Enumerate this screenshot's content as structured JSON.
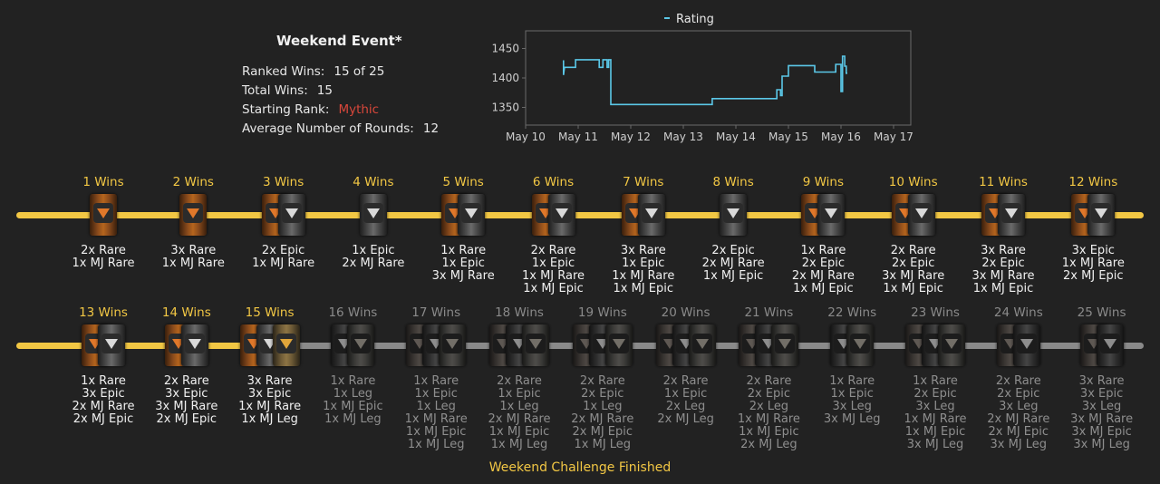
{
  "event": {
    "title": "Weekend Event*",
    "ranked_wins_label": "Ranked Wins:",
    "ranked_wins_value": "15 of 25",
    "total_wins_label": "Total Wins:",
    "total_wins_value": "15",
    "starting_rank_label": "Starting Rank:",
    "starting_rank_value": "Mythic",
    "avg_rounds_label": "Average Number of Rounds:",
    "avg_rounds_value": "12"
  },
  "chart_data": {
    "type": "line",
    "legend": "Rating",
    "legend_position": "top",
    "x_ticks": [
      "May 10",
      "May 11",
      "May 12",
      "May 13",
      "May 14",
      "May 15",
      "May 16",
      "May 17"
    ],
    "y_ticks": [
      1350,
      1400,
      1450
    ],
    "ylim": [
      1320,
      1480
    ],
    "xlim": [
      0,
      7
    ],
    "grid": false,
    "series": [
      {
        "name": "Rating",
        "color": "#5bc8e8",
        "points": [
          [
            0.72,
            1430
          ],
          [
            0.72,
            1405
          ],
          [
            0.74,
            1418
          ],
          [
            0.95,
            1418
          ],
          [
            0.95,
            1431
          ],
          [
            1.4,
            1431
          ],
          [
            1.4,
            1418
          ],
          [
            1.47,
            1418
          ],
          [
            1.47,
            1431
          ],
          [
            1.55,
            1431
          ],
          [
            1.55,
            1418
          ],
          [
            1.58,
            1418
          ],
          [
            1.58,
            1431
          ],
          [
            1.62,
            1431
          ],
          [
            1.62,
            1355
          ],
          [
            3.55,
            1355
          ],
          [
            3.55,
            1365
          ],
          [
            4.78,
            1365
          ],
          [
            4.78,
            1380
          ],
          [
            4.85,
            1380
          ],
          [
            4.85,
            1370
          ],
          [
            4.88,
            1370
          ],
          [
            4.88,
            1403
          ],
          [
            5.0,
            1403
          ],
          [
            5.0,
            1421
          ],
          [
            5.5,
            1421
          ],
          [
            5.5,
            1410
          ],
          [
            5.9,
            1410
          ],
          [
            5.9,
            1423
          ],
          [
            6.0,
            1423
          ],
          [
            6.0,
            1377
          ],
          [
            6.03,
            1377
          ],
          [
            6.03,
            1437
          ],
          [
            6.07,
            1437
          ],
          [
            6.07,
            1420
          ],
          [
            6.1,
            1420
          ],
          [
            6.1,
            1408
          ],
          [
            6.12,
            1408
          ]
        ]
      }
    ]
  },
  "rows": [
    {
      "tiers": [
        {
          "label": "1 Wins",
          "done": true,
          "chests": [
            "rare"
          ],
          "rewards": [
            "2x Rare",
            "1x MJ Rare"
          ]
        },
        {
          "label": "2 Wins",
          "done": true,
          "chests": [
            "rare"
          ],
          "rewards": [
            "3x Rare",
            "1x MJ Rare"
          ]
        },
        {
          "label": "3 Wins",
          "done": true,
          "chests": [
            "rare",
            "epic"
          ],
          "rewards": [
            "2x Epic",
            "1x MJ Rare"
          ]
        },
        {
          "label": "4 Wins",
          "done": true,
          "chests": [
            "epic"
          ],
          "rewards": [
            "1x Epic",
            "2x MJ Rare"
          ]
        },
        {
          "label": "5 Wins",
          "done": true,
          "chests": [
            "rare",
            "epic"
          ],
          "rewards": [
            "1x Rare",
            "1x Epic",
            "3x MJ Rare"
          ]
        },
        {
          "label": "6 Wins",
          "done": true,
          "chests": [
            "rare",
            "epic"
          ],
          "rewards": [
            "2x Rare",
            "1x Epic",
            "1x MJ Rare",
            "1x MJ Epic"
          ]
        },
        {
          "label": "7 Wins",
          "done": true,
          "chests": [
            "rare",
            "epic"
          ],
          "rewards": [
            "3x Rare",
            "1x Epic",
            "1x MJ Rare",
            "1x MJ Epic"
          ]
        },
        {
          "label": "8 Wins",
          "done": true,
          "chests": [
            "epic"
          ],
          "rewards": [
            "2x Epic",
            "2x MJ Rare",
            "1x MJ Epic"
          ]
        },
        {
          "label": "9 Wins",
          "done": true,
          "chests": [
            "rare",
            "epic"
          ],
          "rewards": [
            "1x Rare",
            "2x Epic",
            "2x MJ Rare",
            "1x MJ Epic"
          ]
        },
        {
          "label": "10 Wins",
          "done": true,
          "chests": [
            "rare",
            "epic"
          ],
          "rewards": [
            "2x Rare",
            "2x Epic",
            "3x MJ Rare",
            "1x MJ Epic"
          ]
        },
        {
          "label": "11 Wins",
          "done": true,
          "chests": [
            "rare",
            "epic"
          ],
          "rewards": [
            "3x Rare",
            "2x Epic",
            "3x MJ Rare",
            "1x MJ Epic"
          ]
        },
        {
          "label": "12 Wins",
          "done": true,
          "chests": [
            "rare",
            "epic"
          ],
          "rewards": [
            "3x Epic",
            "1x MJ Rare",
            "2x MJ Epic"
          ]
        }
      ]
    },
    {
      "tiers": [
        {
          "label": "13 Wins",
          "done": true,
          "chests": [
            "rare",
            "epic"
          ],
          "rewards": [
            "1x Rare",
            "3x Epic",
            "2x MJ Rare",
            "2x MJ Epic"
          ]
        },
        {
          "label": "14 Wins",
          "done": true,
          "chests": [
            "rare",
            "epic"
          ],
          "rewards": [
            "2x Rare",
            "3x Epic",
            "3x MJ Rare",
            "2x MJ Epic"
          ]
        },
        {
          "label": "15 Wins",
          "done": true,
          "chests": [
            "rare",
            "epic",
            "leg"
          ],
          "rewards": [
            "3x Rare",
            "3x Epic",
            "1x MJ Rare",
            "1x MJ Leg"
          ]
        },
        {
          "label": "16 Wins",
          "done": false,
          "chests": [
            "epic",
            "leg"
          ],
          "rewards": [
            "1x Rare",
            "1x Leg",
            "1x MJ Epic",
            "1x MJ Leg"
          ]
        },
        {
          "label": "17 Wins",
          "done": false,
          "chests": [
            "rare",
            "epic",
            "leg"
          ],
          "rewards": [
            "1x Rare",
            "1x Epic",
            "1x Leg",
            "1x MJ Rare",
            "1x MJ Epic",
            "1x MJ Leg"
          ]
        },
        {
          "label": "18 Wins",
          "done": false,
          "chests": [
            "rare",
            "epic",
            "leg"
          ],
          "rewards": [
            "2x Rare",
            "1x Epic",
            "1x Leg",
            "2x MJ Rare",
            "1x MJ Epic",
            "1x MJ Leg"
          ]
        },
        {
          "label": "19 Wins",
          "done": false,
          "chests": [
            "rare",
            "epic",
            "leg"
          ],
          "rewards": [
            "2x Rare",
            "2x Epic",
            "1x Leg",
            "2x MJ Rare",
            "2x MJ Epic",
            "1x MJ Leg"
          ]
        },
        {
          "label": "20 Wins",
          "done": false,
          "chests": [
            "rare",
            "epic",
            "leg"
          ],
          "rewards": [
            "2x Rare",
            "1x Epic",
            "2x Leg",
            "2x MJ Leg"
          ]
        },
        {
          "label": "21 Wins",
          "done": false,
          "chests": [
            "rare",
            "epic",
            "leg"
          ],
          "rewards": [
            "2x Rare",
            "2x Epic",
            "2x Leg",
            "1x MJ Rare",
            "1x MJ Epic",
            "2x MJ Leg"
          ]
        },
        {
          "label": "22 Wins",
          "done": false,
          "chests": [
            "epic",
            "leg"
          ],
          "rewards": [
            "1x Rare",
            "1x Epic",
            "3x Leg",
            "3x MJ Leg"
          ]
        },
        {
          "label": "23 Wins",
          "done": false,
          "chests": [
            "rare",
            "epic",
            "leg"
          ],
          "rewards": [
            "1x Rare",
            "2x Epic",
            "3x Leg",
            "1x MJ Rare",
            "1x MJ Epic",
            "3x MJ Leg"
          ]
        },
        {
          "label": "24 Wins",
          "done": false,
          "chests": [
            "rare",
            "epic"
          ],
          "rewards": [
            "2x Rare",
            "2x Epic",
            "3x Leg",
            "2x MJ Rare",
            "2x MJ Epic",
            "3x MJ Leg"
          ]
        },
        {
          "label": "25 Wins",
          "done": false,
          "chests": [
            "rare",
            "epic"
          ],
          "rewards": [
            "3x Rare",
            "3x Epic",
            "3x Leg",
            "3x MJ Rare",
            "3x MJ Epic",
            "3x MJ Leg"
          ]
        }
      ]
    }
  ],
  "footer": "Weekend Challenge Finished",
  "colors": {
    "progress_done": "#f2c744",
    "progress_todo": "#8a8a8a",
    "mythic": "#d9473b",
    "line": "#5bc8e8"
  }
}
